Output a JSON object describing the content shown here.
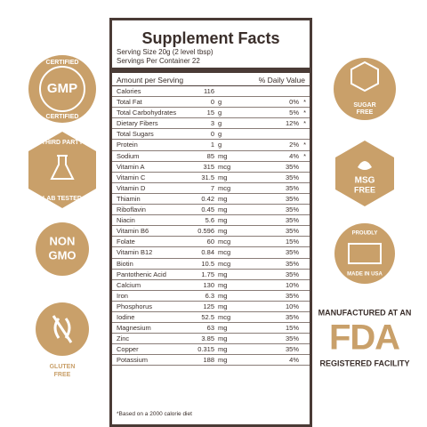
{
  "panel": {
    "title": "Supplement Facts",
    "serving_size": "Serving Size 20g (2 level tbsp)",
    "servings": "Servings Per Container 22",
    "header_amount": "Amount per Serving",
    "header_dv": "% Daily Value",
    "footnote": "*Based on a 2000 calorie diet",
    "rows": [
      {
        "name": "Calories",
        "amount": "116"
      },
      {
        "name": "Total Fat",
        "amount": "0",
        "unit": "g",
        "dv": "0%",
        "star": "*"
      },
      {
        "name": "Total Carbohydrates",
        "amount": "15",
        "unit": "g",
        "dv": "5%",
        "star": "*"
      },
      {
        "name": "Dietary Fibers",
        "amount": "3",
        "unit": "g",
        "dv": "12%",
        "star": "*"
      },
      {
        "name": "Total Sugars",
        "amount": "0",
        "unit": "g"
      },
      {
        "name": "Protein",
        "amount": "1",
        "unit": "g",
        "dv": "2%",
        "star": "*"
      },
      {
        "name": "Sodium",
        "amount": "85",
        "unit": "mg",
        "dv": "4%",
        "star": "*"
      },
      {
        "name": "Vitamin A",
        "amount": "315",
        "unit": "mcg",
        "dv": "35%"
      },
      {
        "name": "Vitamin C",
        "amount": "31.5",
        "unit": "mg",
        "dv": "35%"
      },
      {
        "name": "Vitamin D",
        "amount": "7",
        "unit": "mcg",
        "dv": "35%"
      },
      {
        "name": "Thiamin",
        "amount": "0.42",
        "unit": "mg",
        "dv": "35%"
      },
      {
        "name": "Riboflavin",
        "amount": "0.45",
        "unit": "mg",
        "dv": "35%"
      },
      {
        "name": "Niacin",
        "amount": "5.6",
        "unit": "mg",
        "dv": "35%"
      },
      {
        "name": "Vitamin B6",
        "amount": "0.596",
        "unit": "mg",
        "dv": "35%"
      },
      {
        "name": "Folate",
        "amount": "60",
        "unit": "mcg",
        "dv": "15%"
      },
      {
        "name": "Vitamin B12",
        "amount": "0.84",
        "unit": "mcg",
        "dv": "35%"
      },
      {
        "name": "Biotin",
        "amount": "10.5",
        "unit": "mcg",
        "dv": "35%"
      },
      {
        "name": "Pantothenic Acid",
        "amount": "1.75",
        "unit": "mg",
        "dv": "35%"
      },
      {
        "name": "Calcium",
        "amount": "130",
        "unit": "mg",
        "dv": "10%"
      },
      {
        "name": "Iron",
        "amount": "6.3",
        "unit": "mg",
        "dv": "35%"
      },
      {
        "name": "Phosphorus",
        "amount": "125",
        "unit": "mg",
        "dv": "10%"
      },
      {
        "name": "Iodine",
        "amount": "52.5",
        "unit": "mcg",
        "dv": "35%"
      },
      {
        "name": "Magnesium",
        "amount": "63",
        "unit": "mg",
        "dv": "15%"
      },
      {
        "name": "Zinc",
        "amount": "3.85",
        "unit": "mg",
        "dv": "35%"
      },
      {
        "name": "Copper",
        "amount": "0.315",
        "unit": "mg",
        "dv": "35%"
      },
      {
        "name": "Potassium",
        "amount": "188",
        "unit": "mg",
        "dv": "4%"
      }
    ]
  },
  "badges": {
    "gmp": {
      "top": "CERTIFIED",
      "main": "GMP",
      "bottom": "CERTIFIED"
    },
    "lab": {
      "top": "THIRD PARTY",
      "bottom": "LAB TESTED"
    },
    "gmo": {
      "line1": "NON",
      "line2": "GMO"
    },
    "gluten": {
      "line1": "GLUTEN",
      "line2": "FREE"
    },
    "sugar": {
      "line1": "SUGAR",
      "line2": "FREE"
    },
    "msg": {
      "line1": "MSG",
      "line2": "FREE"
    },
    "usa": {
      "top": "PROUDLY",
      "bottom": "MADE IN USA"
    },
    "fda": {
      "line1": "MANUFACTURED AT AN",
      "main": "FDA",
      "line2": "REGISTERED FACILITY"
    }
  }
}
